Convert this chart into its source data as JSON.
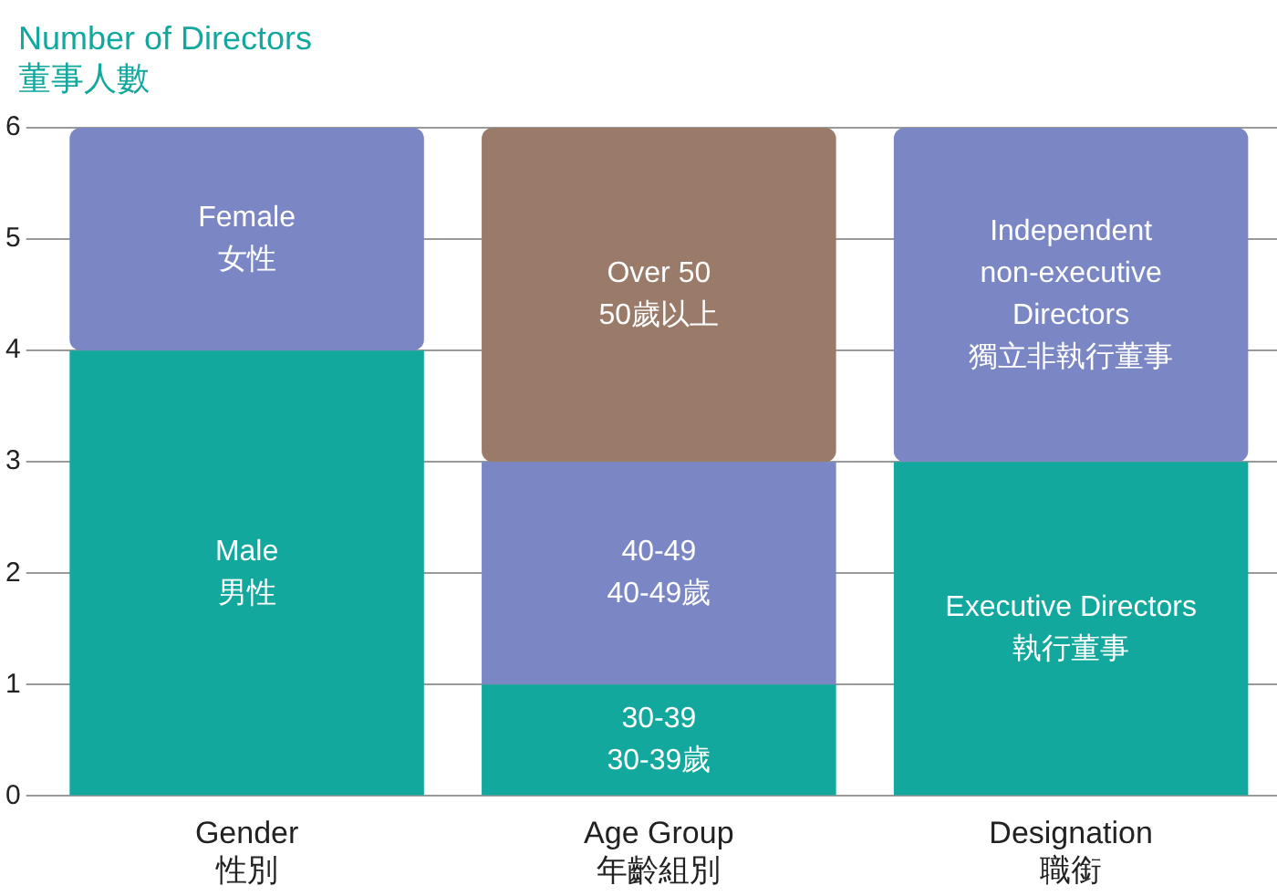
{
  "chart_data": {
    "type": "bar",
    "ylabel": "Number of Directors\n董事人數",
    "categories": [
      "Gender\n性別",
      "Age Group\n年齡組別",
      "Designation\n職銜"
    ],
    "stacked": true,
    "ylim": [
      0,
      6
    ],
    "yticks": [
      0,
      1,
      2,
      3,
      4,
      5,
      6
    ],
    "grid": "y",
    "legend": false,
    "series": [
      {
        "name": "Male\n男性",
        "color": "#13a89e",
        "values": [
          4,
          null,
          null
        ]
      },
      {
        "name": "Female\n女性",
        "color": "#7b86c4",
        "values": [
          2,
          null,
          null
        ]
      },
      {
        "name": "30-39\n30-39歲",
        "color": "#13a89e",
        "values": [
          null,
          1,
          null
        ]
      },
      {
        "name": "40-49\n40-49歲",
        "color": "#7b86c4",
        "values": [
          null,
          2,
          null
        ]
      },
      {
        "name": "Over 50\n50歲以上",
        "color": "#9a7b6a",
        "values": [
          null,
          3,
          null
        ]
      },
      {
        "name": "Executive Directors\n執行董事",
        "color": "#13a89e",
        "values": [
          null,
          null,
          3
        ]
      },
      {
        "name": "Independent\nnon-executive\nDirectors\n獨立非執行董事",
        "color": "#7b86c4",
        "values": [
          null,
          null,
          3
        ]
      }
    ]
  }
}
